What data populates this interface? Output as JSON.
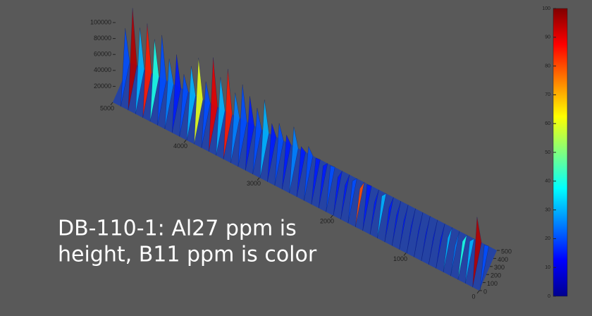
{
  "chart_data": {
    "type": "surface",
    "caption": [
      "DB-110-1: Al27 ppm is",
      "height, B11 ppm is color"
    ],
    "x": [
      4950,
      4850,
      4750,
      4650,
      4550,
      4450,
      4350,
      4250,
      4150,
      4050,
      3950,
      3850,
      3750,
      3650,
      3550,
      3450,
      3350,
      3250,
      3150,
      3050,
      2950,
      2850,
      2750,
      2650,
      2550,
      2450,
      2350,
      2250,
      2150,
      2050,
      1950,
      1850,
      1750,
      1650,
      1550,
      1450,
      1350,
      1250,
      1150,
      1050,
      950,
      850,
      750,
      650,
      550,
      450,
      350,
      250,
      150,
      50
    ],
    "values": [
      70000,
      100000,
      80000,
      90000,
      75000,
      85000,
      60000,
      70000,
      50000,
      65000,
      80000,
      55000,
      90000,
      70000,
      85000,
      60000,
      75000,
      65000,
      55000,
      70000,
      45000,
      50000,
      40000,
      55000,
      35000,
      40000,
      30000,
      25000,
      30000,
      20000,
      15000,
      25000,
      20000,
      30000,
      12000,
      25000,
      15000,
      10000,
      8000,
      6000,
      5000,
      6000,
      5000,
      8000,
      15000,
      10000,
      20000,
      25000,
      60000,
      30000
    ],
    "color_values": [
      20,
      95,
      30,
      85,
      40,
      20,
      25,
      15,
      20,
      30,
      60,
      20,
      90,
      30,
      85,
      25,
      20,
      15,
      20,
      30,
      15,
      20,
      15,
      25,
      15,
      20,
      15,
      15,
      20,
      15,
      15,
      20,
      80,
      15,
      15,
      30,
      15,
      15,
      15,
      15,
      15,
      15,
      15,
      15,
      30,
      25,
      40,
      30,
      95,
      20
    ],
    "xlim": [
      0,
      5000
    ],
    "xticks": [
      0,
      1000,
      2000,
      3000,
      4000,
      5000
    ],
    "ylim": [
      0,
      500
    ],
    "yticks": [
      0,
      100,
      200,
      300,
      400,
      500
    ],
    "zticks": [
      20000,
      40000,
      60000,
      80000,
      100000
    ],
    "clim": [
      0,
      100
    ],
    "cticks": [
      0,
      10,
      20,
      30,
      40,
      50,
      60,
      70,
      80,
      90,
      100
    ]
  }
}
